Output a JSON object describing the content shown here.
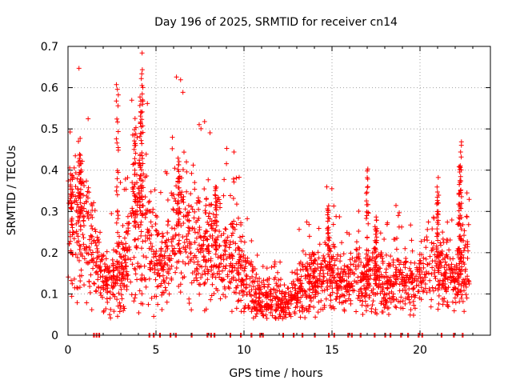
{
  "chart_data": {
    "type": "scatter",
    "title": "Day 196 of 2025, SRMTID for receiver cn14",
    "xlabel": "GPS time / hours",
    "ylabel": "SRMTID / TECUs",
    "xlim": [
      0,
      24
    ],
    "ylim": [
      0,
      0.7
    ],
    "xticks": [
      0,
      5,
      10,
      15,
      20
    ],
    "yticks": [
      0,
      0.1,
      0.2,
      0.3,
      0.4,
      0.5,
      0.6,
      0.7
    ],
    "xtick_labels": [
      "0",
      "5",
      "10",
      "15",
      "20"
    ],
    "ytick_labels": [
      "0",
      "0.1",
      "0.2",
      "0.3",
      "0.4",
      "0.5",
      "0.6",
      "0.7"
    ],
    "grid": true,
    "marker": "+",
    "color": "#ff0000",
    "zero_hours": [
      1.45,
      1.6,
      1.75,
      4.6,
      4.85,
      5.2,
      5.8,
      6.1,
      7.0,
      7.9,
      8.1,
      8.3,
      9.2,
      9.8,
      10.4,
      10.9,
      11.05,
      12.2,
      12.8,
      13.3,
      14.0,
      14.8,
      15.1,
      15.9,
      16.1,
      16.6,
      17.4,
      18.0,
      18.3,
      18.9,
      19.3,
      19.9,
      20.1,
      21.2,
      21.9,
      22.4
    ],
    "envelope": [
      {
        "t": 0.0,
        "y": 0.28
      },
      {
        "t": 0.3,
        "y": 0.27
      },
      {
        "t": 0.6,
        "y": 0.27
      },
      {
        "t": 1.0,
        "y": 0.25
      },
      {
        "t": 1.3,
        "y": 0.22
      },
      {
        "t": 1.6,
        "y": 0.17
      },
      {
        "t": 2.0,
        "y": 0.15
      },
      {
        "t": 2.4,
        "y": 0.13
      },
      {
        "t": 2.8,
        "y": 0.14
      },
      {
        "t": 3.2,
        "y": 0.16
      },
      {
        "t": 3.6,
        "y": 0.24
      },
      {
        "t": 4.0,
        "y": 0.3
      },
      {
        "t": 4.4,
        "y": 0.27
      },
      {
        "t": 4.8,
        "y": 0.19
      },
      {
        "t": 5.2,
        "y": 0.15
      },
      {
        "t": 5.6,
        "y": 0.2
      },
      {
        "t": 6.0,
        "y": 0.25
      },
      {
        "t": 6.4,
        "y": 0.27
      },
      {
        "t": 6.8,
        "y": 0.25
      },
      {
        "t": 7.2,
        "y": 0.23
      },
      {
        "t": 7.6,
        "y": 0.21
      },
      {
        "t": 8.0,
        "y": 0.21
      },
      {
        "t": 8.4,
        "y": 0.21
      },
      {
        "t": 8.8,
        "y": 0.2
      },
      {
        "t": 9.2,
        "y": 0.19
      },
      {
        "t": 9.6,
        "y": 0.18
      },
      {
        "t": 10.0,
        "y": 0.14
      },
      {
        "t": 10.4,
        "y": 0.11
      },
      {
        "t": 10.8,
        "y": 0.09
      },
      {
        "t": 11.2,
        "y": 0.08
      },
      {
        "t": 11.6,
        "y": 0.08
      },
      {
        "t": 12.0,
        "y": 0.08
      },
      {
        "t": 12.4,
        "y": 0.08
      },
      {
        "t": 12.8,
        "y": 0.09
      },
      {
        "t": 13.2,
        "y": 0.11
      },
      {
        "t": 13.6,
        "y": 0.13
      },
      {
        "t": 14.0,
        "y": 0.14
      },
      {
        "t": 14.4,
        "y": 0.13
      },
      {
        "t": 14.8,
        "y": 0.16
      },
      {
        "t": 15.2,
        "y": 0.13
      },
      {
        "t": 15.6,
        "y": 0.12
      },
      {
        "t": 16.0,
        "y": 0.12
      },
      {
        "t": 16.4,
        "y": 0.13
      },
      {
        "t": 16.8,
        "y": 0.13
      },
      {
        "t": 17.2,
        "y": 0.14
      },
      {
        "t": 17.6,
        "y": 0.14
      },
      {
        "t": 18.0,
        "y": 0.12
      },
      {
        "t": 18.4,
        "y": 0.12
      },
      {
        "t": 18.8,
        "y": 0.13
      },
      {
        "t": 19.2,
        "y": 0.14
      },
      {
        "t": 19.6,
        "y": 0.13
      },
      {
        "t": 20.0,
        "y": 0.14
      },
      {
        "t": 20.4,
        "y": 0.16
      },
      {
        "t": 20.8,
        "y": 0.18
      },
      {
        "t": 21.2,
        "y": 0.15
      },
      {
        "t": 21.6,
        "y": 0.14
      },
      {
        "t": 22.0,
        "y": 0.13
      },
      {
        "t": 22.4,
        "y": 0.16
      },
      {
        "t": 22.8,
        "y": 0.17
      }
    ],
    "spikes": [
      {
        "t": 2.8,
        "y": 0.61
      },
      {
        "t": 4.2,
        "y": 0.65
      },
      {
        "t": 4.1,
        "y": 0.58
      },
      {
        "t": 3.8,
        "y": 0.52
      },
      {
        "t": 0.7,
        "y": 0.44
      },
      {
        "t": 6.3,
        "y": 0.42
      },
      {
        "t": 17.0,
        "y": 0.4
      },
      {
        "t": 22.3,
        "y": 0.46
      },
      {
        "t": 22.25,
        "y": 0.41
      },
      {
        "t": 14.8,
        "y": 0.32
      },
      {
        "t": 21.0,
        "y": 0.34
      },
      {
        "t": 8.4,
        "y": 0.36
      },
      {
        "t": 0.2,
        "y": 0.39
      },
      {
        "t": 17.5,
        "y": 0.28
      }
    ],
    "point_count": 2400,
    "seed": 196
  }
}
